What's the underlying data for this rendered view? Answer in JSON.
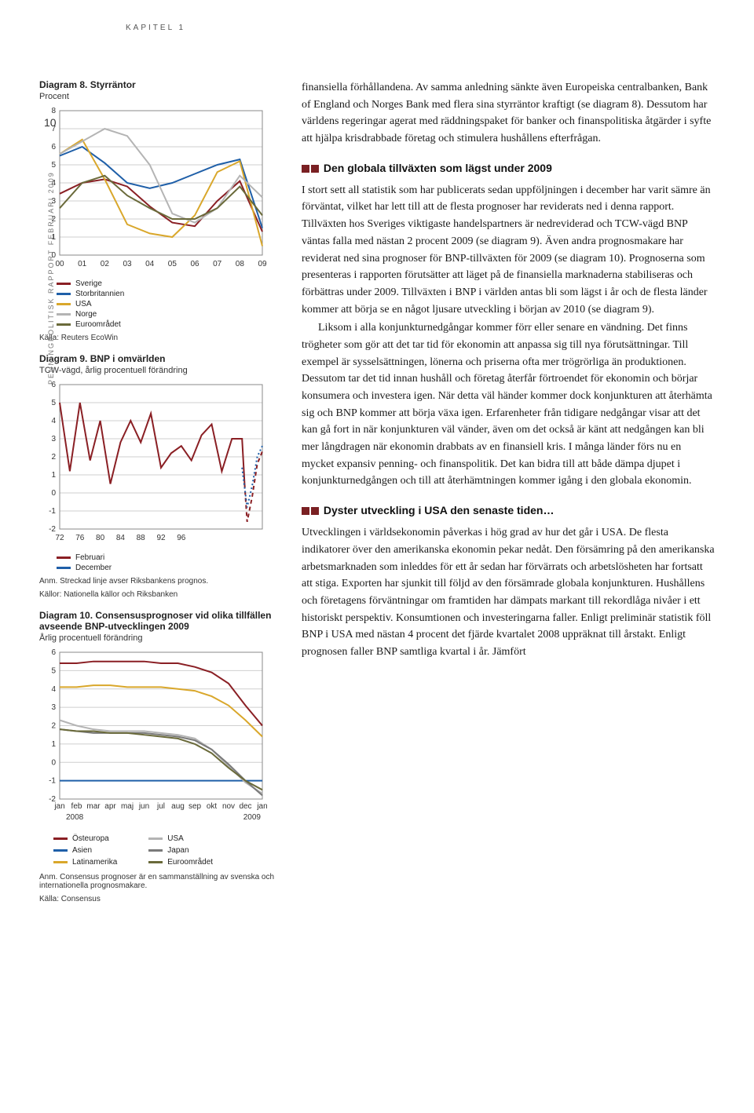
{
  "header": {
    "chapter": "KAPITEL 1"
  },
  "margin": {
    "vertical_text": "PENNINGPOLITISK RAPPORT FEBRUARI 2009",
    "page_number": "10"
  },
  "chart8": {
    "type": "line",
    "title_bold": "Diagram 8. Styrräntor",
    "subtitle": "Procent",
    "xticks": [
      "00",
      "01",
      "02",
      "03",
      "04",
      "05",
      "06",
      "07",
      "08",
      "09"
    ],
    "yticks": [
      0,
      1,
      2,
      3,
      4,
      5,
      6,
      7,
      8
    ],
    "ylim": [
      0,
      8
    ],
    "background_color": "#ffffff",
    "grid_color": "#cfcfcf",
    "axis_color": "#888888",
    "series": [
      {
        "name": "Sverige",
        "color": "#8a1f24",
        "values": [
          3.4,
          4.0,
          4.2,
          3.8,
          2.7,
          1.8,
          1.6,
          3.0,
          4.1,
          1.3
        ]
      },
      {
        "name": "Storbritannien",
        "color": "#1f5fa8",
        "values": [
          5.5,
          6.0,
          5.1,
          4.0,
          3.7,
          4.0,
          4.5,
          5.0,
          5.3,
          1.5
        ]
      },
      {
        "name": "USA",
        "color": "#d9a72b",
        "values": [
          5.6,
          6.4,
          4.2,
          1.7,
          1.2,
          1.0,
          2.2,
          4.6,
          5.2,
          0.5
        ]
      },
      {
        "name": "Norge",
        "color": "#b4b4b4",
        "values": [
          5.6,
          6.3,
          7.0,
          6.6,
          5.0,
          2.3,
          1.8,
          2.6,
          4.4,
          3.2
        ]
      },
      {
        "name": "Euroområdet",
        "color": "#6a6a3a",
        "values": [
          2.6,
          4.0,
          4.4,
          3.3,
          2.6,
          2.0,
          2.0,
          2.6,
          3.8,
          2.2
        ]
      }
    ],
    "legend_labels": [
      "Sverige",
      "Storbritannien",
      "USA",
      "Norge",
      "Euroområdet"
    ],
    "source": "Källa: Reuters EcoWin"
  },
  "chart9": {
    "type": "line",
    "title_bold": "Diagram 9. BNP i omvärlden",
    "subtitle": "TCW-vägd, årlig procentuell förändring",
    "xticks": [
      "72",
      "76",
      "80",
      "84",
      "88",
      "92",
      "96",
      "00",
      "04",
      "08",
      "12"
    ],
    "yticks": [
      -2,
      -1,
      0,
      1,
      2,
      3,
      4,
      5,
      6
    ],
    "ylim": [
      -2,
      6
    ],
    "background_color": "#ffffff",
    "grid_color": "#cfcfcf",
    "axis_color": "#888888",
    "series": [
      {
        "name": "Februari",
        "color": "#8a1f24",
        "style": "solid",
        "x": [
          72,
          74,
          76,
          78,
          80,
          82,
          84,
          86,
          88,
          90,
          92,
          94,
          96,
          98,
          100,
          102,
          104,
          106,
          108,
          108.5
        ],
        "y": [
          5.0,
          1.2,
          5.0,
          1.8,
          4.0,
          0.5,
          2.8,
          4.0,
          2.8,
          4.4,
          1.4,
          2.2,
          2.6,
          1.8,
          3.2,
          3.8,
          1.2,
          3.0,
          3.0,
          0.5
        ]
      },
      {
        "name": "Februari-prognos",
        "color": "#8a1f24",
        "style": "dashed",
        "x": [
          108.5,
          109,
          110,
          111,
          112
        ],
        "y": [
          0.5,
          -1.6,
          -0.2,
          1.6,
          2.3
        ]
      },
      {
        "name": "December",
        "color": "#1f5fa8",
        "style": "dotted",
        "x": [
          108,
          109,
          110,
          111,
          112
        ],
        "y": [
          1.4,
          -0.8,
          0.4,
          2.0,
          2.6
        ]
      }
    ],
    "legend_labels": [
      "Februari",
      "December"
    ],
    "note": "Anm. Streckad linje avser Riksbankens prognos.",
    "source": "Källor: Nationella källor och Riksbanken"
  },
  "chart10": {
    "type": "line",
    "title_bold": "Diagram 10. Consensusprognoser vid olika tillfällen avseende BNP-utvecklingen 2009",
    "subtitle": "Årlig procentuell förändring",
    "xticks": [
      "jan",
      "feb",
      "mar",
      "apr",
      "maj",
      "jun",
      "jul",
      "aug",
      "sep",
      "okt",
      "nov",
      "dec",
      "jan"
    ],
    "start_year": "2008",
    "end_year": "2009",
    "yticks": [
      -2,
      -1,
      0,
      1,
      2,
      3,
      4,
      5,
      6
    ],
    "ylim": [
      -2,
      6
    ],
    "background_color": "#ffffff",
    "grid_color": "#cfcfcf",
    "axis_color": "#888888",
    "series": [
      {
        "name": "Östeuropa",
        "color": "#8a1f24",
        "y": [
          5.4,
          5.4,
          5.5,
          5.5,
          5.5,
          5.5,
          5.4,
          5.4,
          5.2,
          4.9,
          4.3,
          3.1,
          2.0
        ]
      },
      {
        "name": "Asien",
        "color": "#1f5fa8",
        "y": [
          -1,
          -1,
          -1,
          -1,
          -1,
          -1,
          -1,
          -1,
          -1,
          -1,
          -1,
          -1,
          -1
        ]
      },
      {
        "name": "Latinamerika",
        "color": "#d9a72b",
        "y": [
          4.1,
          4.1,
          4.2,
          4.2,
          4.1,
          4.1,
          4.1,
          4.0,
          3.9,
          3.6,
          3.1,
          2.3,
          1.4
        ]
      },
      {
        "name": "USA",
        "color": "#b4b4b4",
        "y": [
          2.3,
          2.0,
          1.8,
          1.7,
          1.7,
          1.7,
          1.6,
          1.5,
          1.3,
          0.7,
          -0.2,
          -1.1,
          -1.7
        ]
      },
      {
        "name": "Japan",
        "color": "#7a7a7a",
        "y": [
          1.8,
          1.7,
          1.6,
          1.6,
          1.6,
          1.6,
          1.5,
          1.4,
          1.2,
          0.7,
          -0.1,
          -1.0,
          -1.8
        ]
      },
      {
        "name": "Euroområdet",
        "color": "#6a6a3a",
        "y": [
          1.8,
          1.7,
          1.7,
          1.6,
          1.6,
          1.5,
          1.4,
          1.3,
          1.0,
          0.5,
          -0.3,
          -1.0,
          -1.5
        ]
      }
    ],
    "legend_left": [
      "Östeuropa",
      "Asien",
      "Latinamerika"
    ],
    "legend_right": [
      "USA",
      "Japan",
      "Euroområdet"
    ],
    "note": "Anm. Consensus prognoser är en sammanställning av svenska och internationella prognosmakare.",
    "source": "Källa: Consensus"
  },
  "body": {
    "p1": "finansiella förhållandena. Av samma anledning sänkte även Europeiska centralbanken, Bank of England och Norges Bank med flera sina styrräntor kraftigt (se diagram 8). Dessutom har världens regeringar agerat med räddningspaket för banker och finanspolitiska åtgärder i syfte att hjälpa krisdrabbade företag och stimulera hushållens efterfrågan.",
    "h2": "Den globala tillväxten som lägst under 2009",
    "p2": "I stort sett all statistik som har publicerats sedan uppföljningen i december har varit sämre än förväntat, vilket har lett till att de flesta prognoser har reviderats ned i denna rapport. Tillväxten hos Sveriges viktigaste handelspartners är nedreviderad och TCW-vägd BNP väntas falla med nästan 2 procent 2009 (se diagram 9). Även andra prognosmakare har reviderat ned sina prognoser för BNP-tillväxten för 2009 (se diagram 10). Prognoserna som presenteras i rapporten förutsätter att läget på de finansiella marknaderna stabiliseras och förbättras under 2009. Tillväxten i BNP i världen antas bli som lägst i år och de flesta länder kommer att börja se en något ljusare utveckling i början av 2010 (se diagram 9).",
    "p3": "Liksom i alla konjunkturnedgångar kommer förr eller senare en vändning. Det finns trögheter som gör att det tar tid för ekonomin att anpassa sig till nya förutsättningar. Till exempel är sysselsättningen, lönerna och priserna ofta mer trögrörliga än produktionen. Dessutom tar det tid innan hushåll och företag återfår förtroendet för ekonomin och börjar konsumera och investera igen. När detta väl händer kommer dock konjunkturen att återhämta sig och BNP kommer att börja växa igen. Erfarenheter från tidigare nedgångar visar att det kan gå fort in när konjunkturen väl vänder, även om det också är känt att nedgången kan bli mer långdragen när ekonomin drabbats av en finansiell kris. I många länder förs nu en mycket expansiv penning- och finanspolitik. Det kan bidra till att både dämpa djupet i konjunkturnedgången och till att återhämtningen kommer igång i den globala ekonomin.",
    "h3": "Dyster utveckling i USA den senaste tiden…",
    "p4": "Utvecklingen i världsekonomin påverkas i hög grad av hur det går i USA. De flesta indikatorer över den amerikanska ekonomin pekar nedåt. Den försämring på den amerikanska arbetsmarknaden som inleddes för ett år sedan har förvärrats och arbetslösheten har fortsatt att stiga. Exporten har sjunkit till följd av den försämrade globala konjunkturen. Hushållens och företagens förväntningar om framtiden har dämpats markant till rekordlåga nivåer i ett historiskt perspektiv. Konsumtionen och investeringarna faller. Enligt preliminär statistik föll BNP i USA med nästan 4 procent det fjärde kvartalet 2008 uppräknat till årstakt. Enligt prognosen faller BNP samtliga kvartal i år. Jämfört"
  },
  "palette": {
    "red": "#8a1f24",
    "blue": "#1f5fa8",
    "gold": "#d9a72b",
    "grey": "#b4b4b4",
    "olive": "#6a6a3a",
    "darkgrey": "#7a7a7a"
  }
}
